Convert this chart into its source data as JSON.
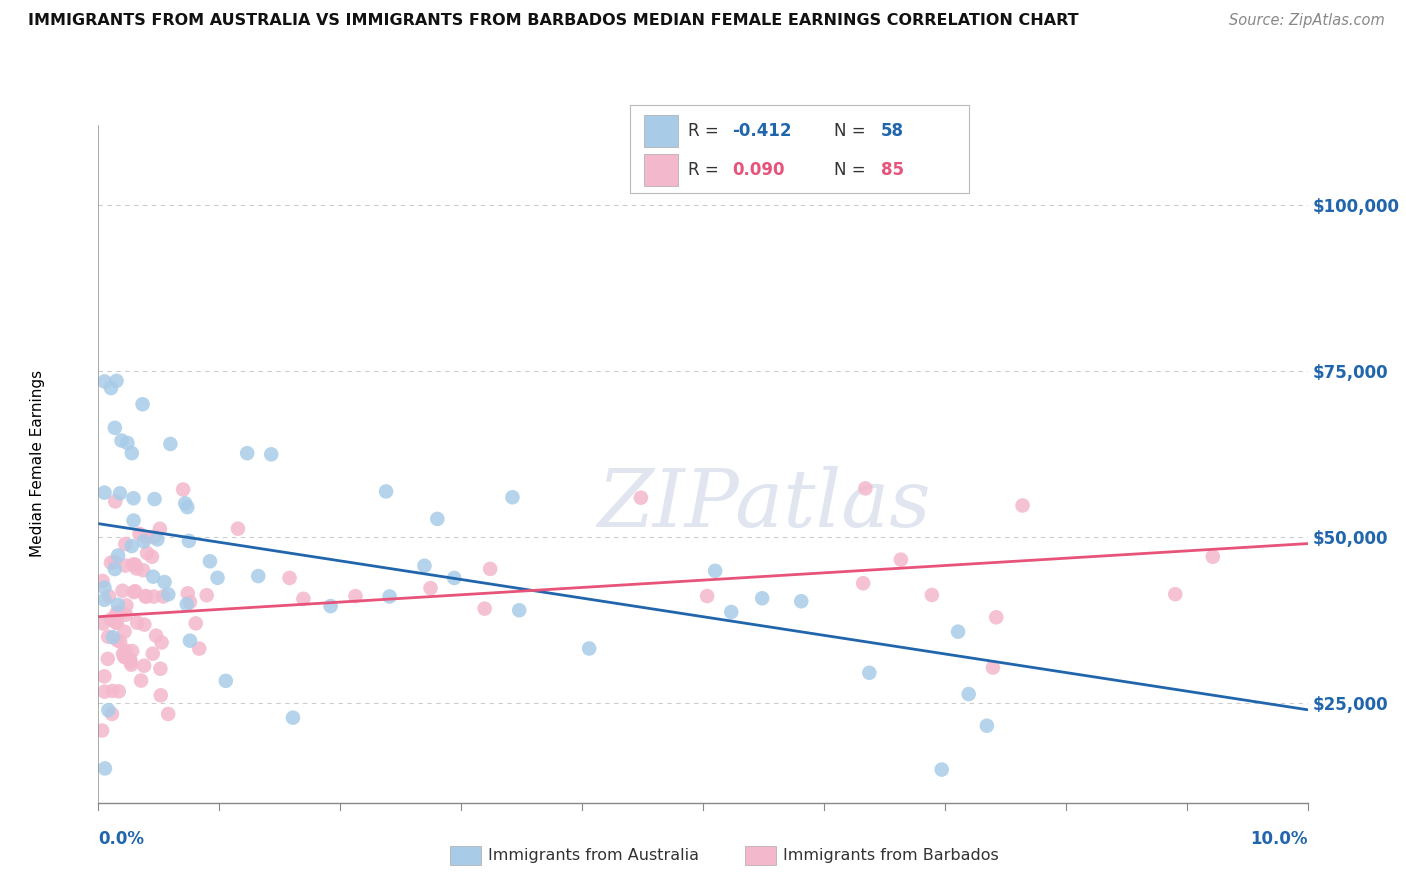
{
  "title": "IMMIGRANTS FROM AUSTRALIA VS IMMIGRANTS FROM BARBADOS MEDIAN FEMALE EARNINGS CORRELATION CHART",
  "source": "Source: ZipAtlas.com",
  "ylabel": "Median Female Earnings",
  "R_australia": -0.412,
  "N_australia": 58,
  "R_barbados": 0.09,
  "N_barbados": 85,
  "color_australia": "#a8cce8",
  "color_barbados": "#f4b8cc",
  "trendline_australia": "#2166ac",
  "trendline_barbados": "#e8537a",
  "ytick_vals": [
    25000,
    50000,
    75000,
    100000
  ],
  "ylabels": [
    "$25,000",
    "$50,000",
    "$75,000",
    "$100,000"
  ],
  "xlim": [
    0.0,
    10.0
  ],
  "ylim": [
    10000,
    112000
  ],
  "watermark": "ZIPatlas",
  "background_color": "#ffffff",
  "legend_text_color": "#333333",
  "legend_R_color": "#2166ac",
  "legend_N_color_aus": "#2166ac",
  "legend_N_color_bar": "#e8537a",
  "grid_color": "#cccccc",
  "source_color": "#888888",
  "aus_trend_y0": 52000,
  "aus_trend_y1": 24000,
  "bar_trend_y0": 38000,
  "bar_trend_y1": 49000
}
